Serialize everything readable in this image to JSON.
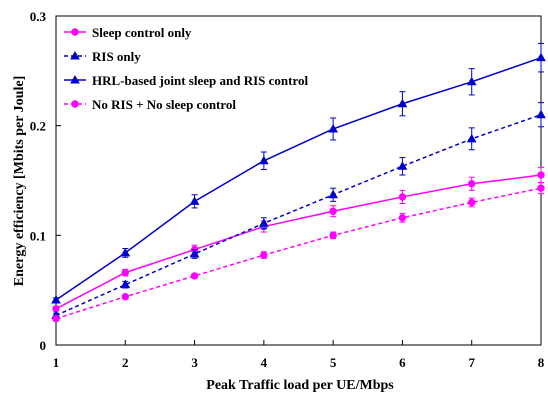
{
  "chart_data": {
    "type": "line",
    "xlabel": "Peak Traffic load per UE/Mbps",
    "ylabel": "Energy efficiency [Mbits per Joule]",
    "xlim": [
      1,
      8
    ],
    "ylim": [
      0,
      0.3
    ],
    "x": [
      1,
      2,
      3,
      4,
      5,
      6,
      7,
      8
    ],
    "xticks": [
      "1",
      "2",
      "3",
      "4",
      "5",
      "6",
      "7",
      "8"
    ],
    "yticks": [
      {
        "value": 0,
        "label": "0"
      },
      {
        "value": 0.1,
        "label": "0.1"
      },
      {
        "value": 0.2,
        "label": "0.2"
      },
      {
        "value": 0.3,
        "label": "0.3"
      }
    ],
    "grid": false,
    "legend_position": "top-left",
    "series": [
      {
        "name": "Sleep control only",
        "color": "#ff00ff",
        "dash": "solid",
        "marker": "circle",
        "values": [
          0.033,
          0.066,
          0.087,
          0.108,
          0.122,
          0.135,
          0.147,
          0.155
        ],
        "errors": [
          0.002,
          0.003,
          0.004,
          0.005,
          0.005,
          0.006,
          0.006,
          0.007
        ]
      },
      {
        "name": "RIS only",
        "color": "#0000cc",
        "dash": "dashed",
        "marker": "triangle",
        "values": [
          0.027,
          0.055,
          0.083,
          0.111,
          0.137,
          0.163,
          0.188,
          0.21
        ],
        "errors": [
          0.002,
          0.003,
          0.004,
          0.005,
          0.006,
          0.008,
          0.01,
          0.011
        ]
      },
      {
        "name": "HRL-based joint sleep and RIS control",
        "color": "#0000cc",
        "dash": "solid",
        "marker": "triangle",
        "values": [
          0.041,
          0.084,
          0.131,
          0.168,
          0.197,
          0.22,
          0.24,
          0.262
        ],
        "errors": [
          0.002,
          0.004,
          0.006,
          0.008,
          0.01,
          0.011,
          0.012,
          0.013
        ]
      },
      {
        "name": "No RIS + No sleep control",
        "color": "#ff00ff",
        "dash": "dashed",
        "marker": "circle",
        "values": [
          0.024,
          0.044,
          0.063,
          0.082,
          0.1,
          0.116,
          0.13,
          0.143
        ],
        "errors": [
          0.001,
          0.002,
          0.002,
          0.003,
          0.003,
          0.004,
          0.004,
          0.005
        ]
      }
    ]
  }
}
